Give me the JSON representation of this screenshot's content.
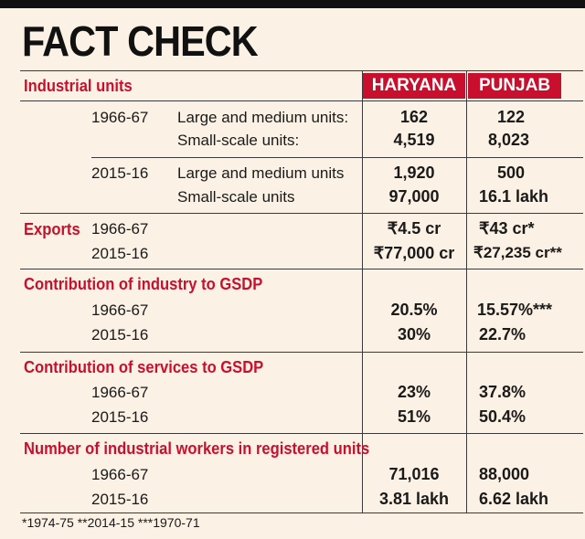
{
  "title": "FACT CHECK",
  "columns": {
    "haryana": "HARYANA",
    "punjab": "PUNJAB"
  },
  "industrial_units": {
    "heading": "Industrial units",
    "rows": [
      {
        "year": "1966-67",
        "label": "Large and medium units:",
        "haryana": "162",
        "punjab": "122"
      },
      {
        "year": "",
        "label": "Small-scale units:",
        "haryana": "4,519",
        "punjab": "8,023"
      },
      {
        "year": "2015-16",
        "label": "Large and medium units",
        "haryana": "1,920",
        "punjab": "500"
      },
      {
        "year": "",
        "label": "Small-scale units",
        "haryana": "97,000",
        "punjab": "16.1 lakh"
      }
    ]
  },
  "exports": {
    "heading": "Exports",
    "rows": [
      {
        "year": "1966-67",
        "haryana": "₹4.5 cr",
        "punjab": "₹43 cr*"
      },
      {
        "year": "2015-16",
        "haryana": "₹77,000 cr",
        "punjab": "₹27,235 cr**"
      }
    ]
  },
  "industry_gsdp": {
    "heading": "Contribution of industry to GSDP",
    "rows": [
      {
        "year": "1966-67",
        "haryana": "20.5%",
        "punjab": "15.57%***"
      },
      {
        "year": "2015-16",
        "haryana": "30%",
        "punjab": "22.7%"
      }
    ]
  },
  "services_gsdp": {
    "heading": "Contribution of services to GSDP",
    "rows": [
      {
        "year": "1966-67",
        "haryana": "23%",
        "punjab": "37.8%"
      },
      {
        "year": "2015-16",
        "haryana": "51%",
        "punjab": "50.4%"
      }
    ]
  },
  "workers": {
    "heading": "Number of industrial workers in registered units",
    "rows": [
      {
        "year": "1966-67",
        "haryana": "71,016",
        "punjab": "88,000"
      },
      {
        "year": "2015-16",
        "haryana": "3.81 lakh",
        "punjab": "6.62 lakh"
      }
    ]
  },
  "footnote": "*1974-75 **2014-15 ***1970-71"
}
